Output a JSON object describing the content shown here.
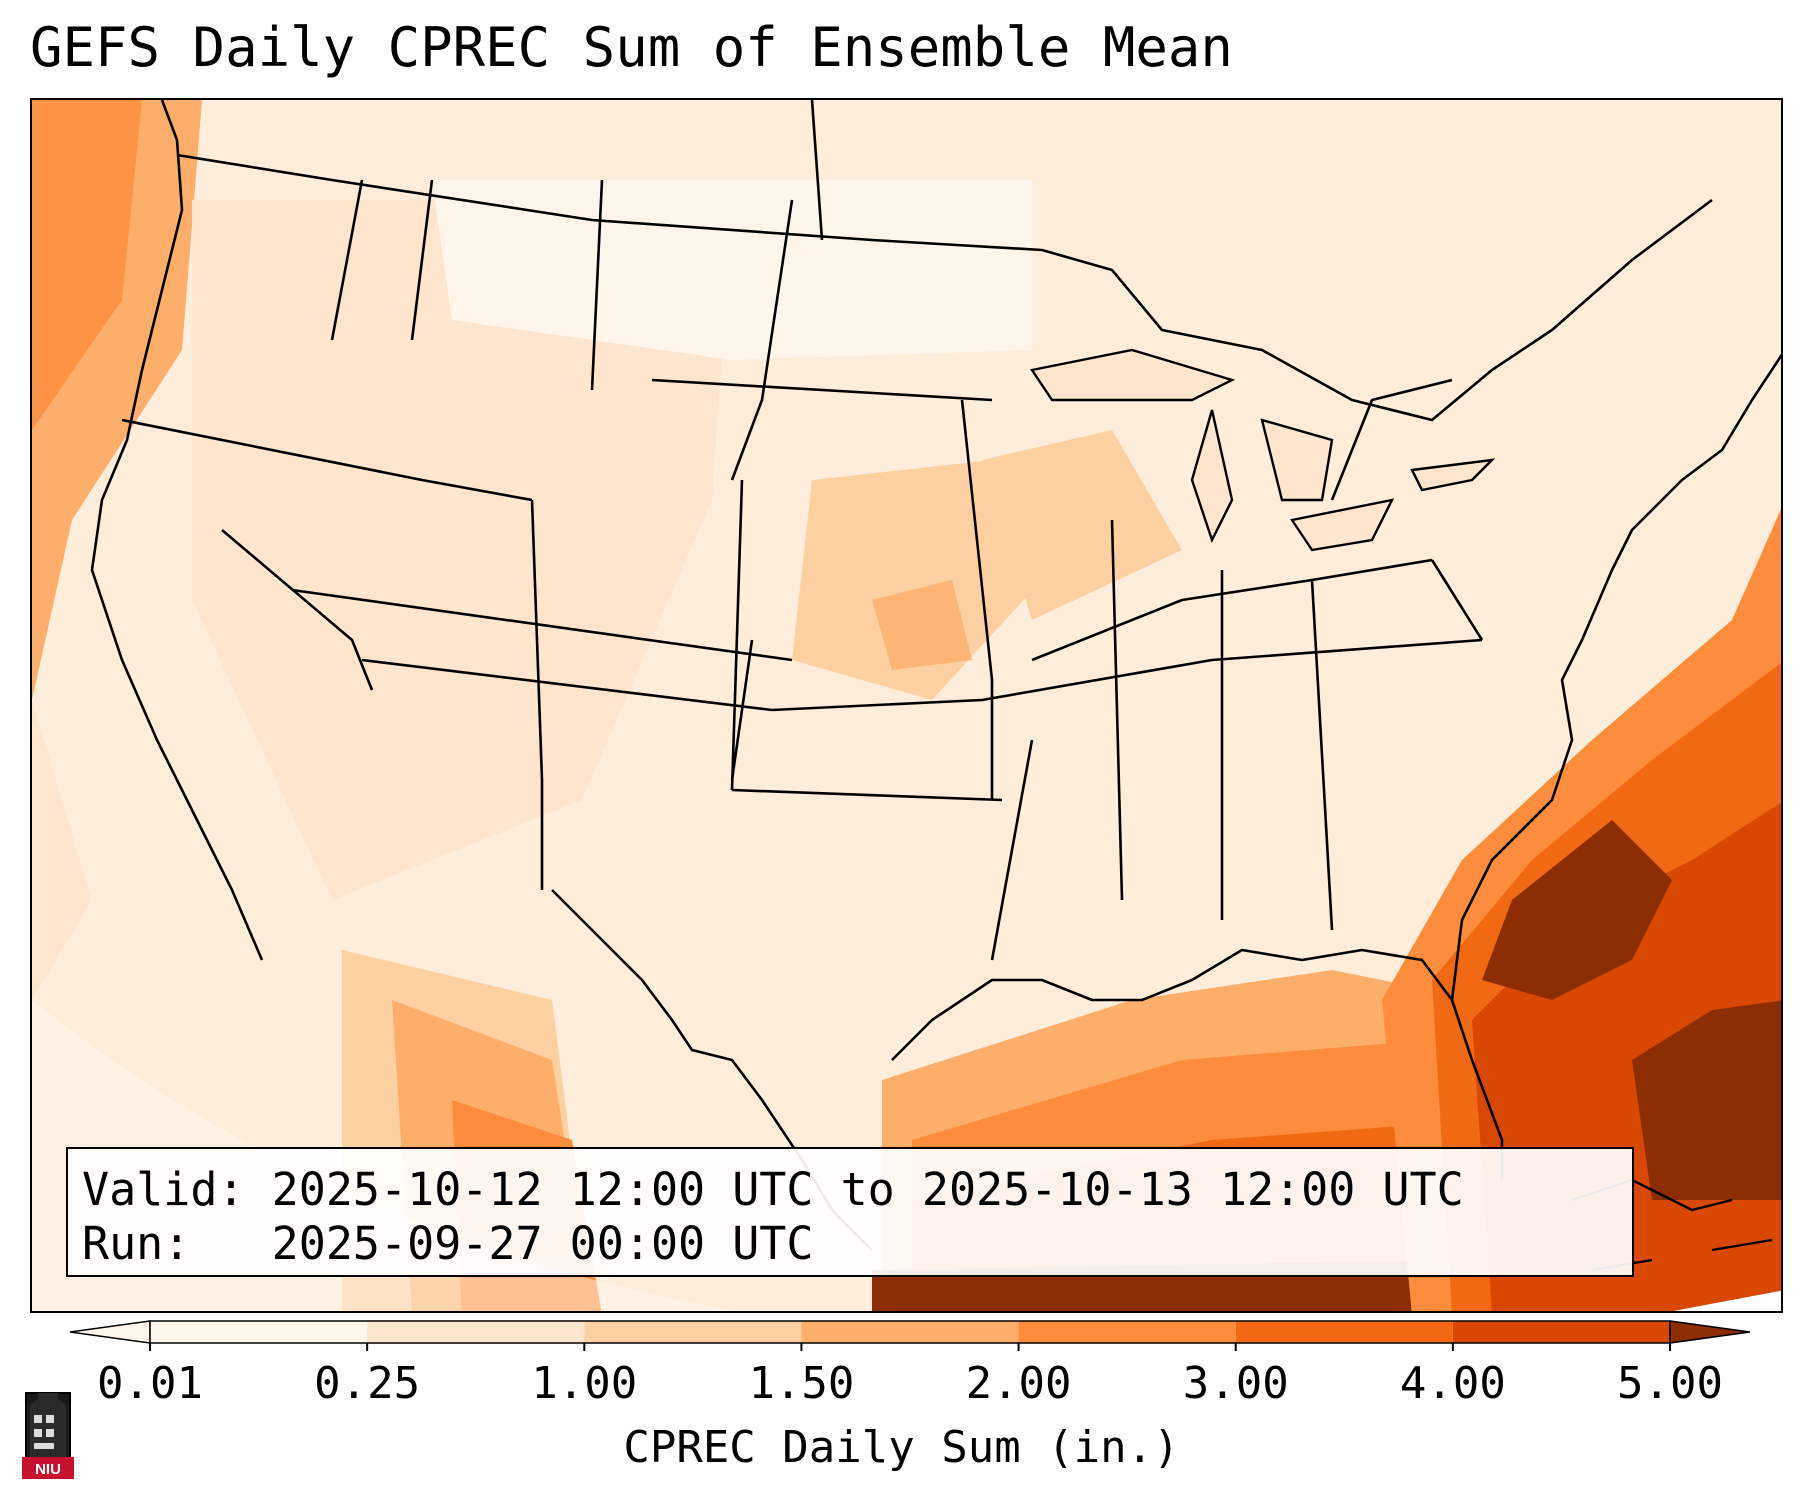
{
  "title": "GEFS Daily CPREC Sum of Ensemble Mean",
  "info": {
    "valid_line": "Valid: 2025-10-12 12:00 UTC to 2025-10-13 12:00 UTC",
    "run_line": "Run:   2025-09-27 00:00 UTC"
  },
  "colorbar": {
    "label": "CPREC Daily Sum (in.)",
    "ticks": [
      "0.01",
      "0.25",
      "1.00",
      "1.50",
      "2.00",
      "3.00",
      "4.00",
      "5.00"
    ],
    "colors": [
      "#fff5eb",
      "#fee6ce",
      "#fdd0a2",
      "#fdae6b",
      "#fd8d3c",
      "#f16913",
      "#d94801",
      "#8c2d04"
    ],
    "extend": "both"
  },
  "logo": {
    "text": "NIU",
    "brand_color": "#c8102e"
  }
}
